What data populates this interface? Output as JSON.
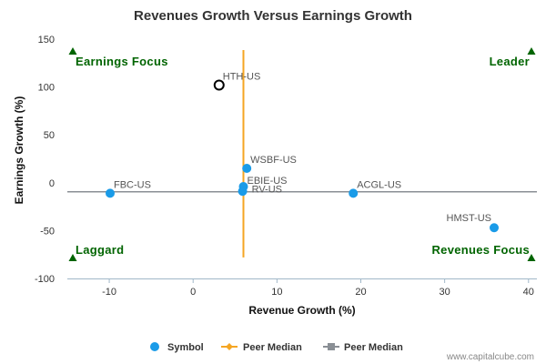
{
  "chart_data": {
    "type": "scatter",
    "title": "Revenues Growth Versus Earnings Growth",
    "xlabel": "Revenue Growth (%)",
    "ylabel": "Earnings Growth (%)",
    "xlim": [
      -15,
      41
    ],
    "ylim": [
      -100,
      150
    ],
    "x_ticks": [
      -10,
      0,
      10,
      20,
      30,
      40
    ],
    "y_ticks": [
      -100,
      -50,
      0,
      50,
      100,
      150
    ],
    "grid": false,
    "legend_position": "bottom",
    "points": [
      {
        "label": "HTH-US",
        "x": 3.1,
        "y": 102,
        "style": "highlight"
      },
      {
        "label": "WSBF-US",
        "x": 6.4,
        "y": 15
      },
      {
        "label": "EBIE-US",
        "x": 6.0,
        "y": -4
      },
      {
        "label": "RV-US",
        "x": 5.9,
        "y": -9
      },
      {
        "label": "FBC-US",
        "x": -9.9,
        "y": -11
      },
      {
        "label": "ACGL-US",
        "x": 19.1,
        "y": -11
      },
      {
        "label": "HMST-US",
        "x": 35.9,
        "y": -47
      }
    ],
    "peer_median_x": 6.0,
    "peer_median_y": -9.5,
    "quadrants": {
      "top_left": "Earnings Focus",
      "top_right": "Leader",
      "bottom_left": "Laggard",
      "bottom_right": "Revenues Focus"
    },
    "legend": [
      "Symbol",
      "Peer Median",
      "Peer Median"
    ],
    "colors": {
      "point": "#1a9be8",
      "highlight_stroke": "#000000",
      "median_vertical": "#f5a623",
      "median_horizontal": "#8a8f95",
      "quadrant": "#006400",
      "axis": "#a0b8c8"
    }
  },
  "footer": {
    "credit": "www.capitalcube.com"
  }
}
